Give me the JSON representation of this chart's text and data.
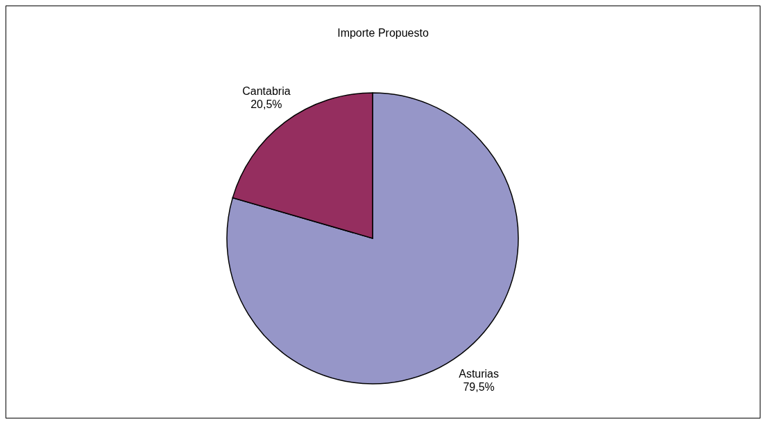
{
  "chart_data": {
    "type": "pie",
    "title": "Importe Propuesto",
    "categories": [
      "Asturias",
      "Cantabria"
    ],
    "values": [
      79.5,
      20.5
    ],
    "value_labels": [
      "79,5%",
      "20,5%"
    ],
    "colors": [
      "#9696c8",
      "#952e5f"
    ]
  }
}
